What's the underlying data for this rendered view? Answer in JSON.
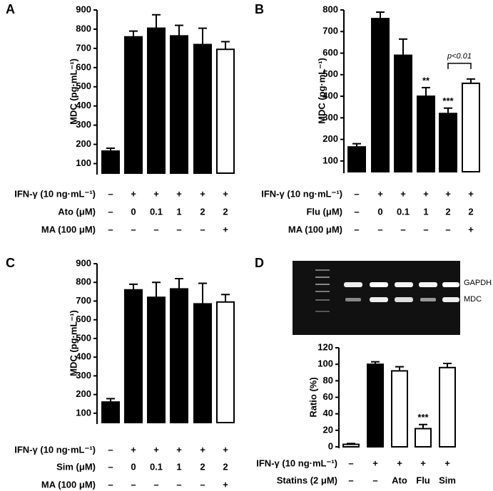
{
  "chart_data": [
    {
      "type": "bar",
      "panel_label": "A",
      "ylabel": "MDC (pg·mL⁻¹)",
      "ylim": [
        50,
        900
      ],
      "yticks": [
        100,
        200,
        300,
        400,
        500,
        600,
        700,
        800,
        900
      ],
      "values": [
        165,
        760,
        805,
        765,
        720,
        695
      ],
      "errors": [
        15,
        30,
        70,
        55,
        85,
        40
      ],
      "colors": [
        "#000000",
        "#000000",
        "#000000",
        "#000000",
        "#000000",
        "#ffffff"
      ],
      "treatments": [
        {
          "label": "IFN-γ  (10 ng·mL⁻¹)",
          "values": [
            "–",
            "+",
            "+",
            "+",
            "+",
            "+"
          ]
        },
        {
          "label": "Ato (μM)",
          "values": [
            "–",
            "0",
            "0.1",
            "1",
            "2",
            "2"
          ]
        },
        {
          "label": "MA (100 μM)",
          "values": [
            "–",
            "–",
            "–",
            "–",
            "–",
            "+"
          ]
        }
      ]
    },
    {
      "type": "bar",
      "panel_label": "B",
      "ylabel": "MDC (pg·mL⁻¹)",
      "ylim": [
        50,
        800
      ],
      "yticks": [
        100,
        200,
        300,
        400,
        500,
        600,
        700,
        800
      ],
      "values": [
        165,
        760,
        590,
        400,
        320,
        460
      ],
      "errors": [
        15,
        30,
        75,
        40,
        25,
        20
      ],
      "colors": [
        "#000000",
        "#000000",
        "#000000",
        "#000000",
        "#000000",
        "#ffffff"
      ],
      "bar_labels": [
        null,
        null,
        null,
        "**",
        "***",
        null
      ],
      "bracket_label": "p<0.01",
      "treatments": [
        {
          "label": "IFN-γ  (10 ng·mL⁻¹)",
          "values": [
            "–",
            "+",
            "+",
            "+",
            "+",
            "+"
          ]
        },
        {
          "label": "Flu (μM)",
          "values": [
            "–",
            "0",
            "0.1",
            "1",
            "2",
            "2"
          ]
        },
        {
          "label": "MA (100 μM)",
          "values": [
            "–",
            "–",
            "–",
            "–",
            "–",
            "+"
          ]
        }
      ]
    },
    {
      "type": "bar",
      "panel_label": "C",
      "ylabel": "MDC (pg·mL⁻¹)",
      "ylim": [
        50,
        900
      ],
      "yticks": [
        100,
        200,
        300,
        400,
        500,
        600,
        700,
        800,
        900
      ],
      "values": [
        160,
        760,
        720,
        765,
        685,
        695
      ],
      "errors": [
        18,
        30,
        80,
        55,
        110,
        40
      ],
      "colors": [
        "#000000",
        "#000000",
        "#000000",
        "#000000",
        "#000000",
        "#ffffff"
      ],
      "treatments": [
        {
          "label": "IFN-γ  (10 ng·mL⁻¹)",
          "values": [
            "–",
            "+",
            "+",
            "+",
            "+",
            "+"
          ]
        },
        {
          "label": "Sim (μM)",
          "values": [
            "–",
            "0",
            "0.1",
            "1",
            "2",
            "2"
          ]
        },
        {
          "label": "MA (100 μM)",
          "values": [
            "–",
            "–",
            "–",
            "–",
            "–",
            "+"
          ]
        }
      ]
    },
    {
      "type": "bar",
      "panel_label": "D",
      "ylabel": "Ratio (%)",
      "ylim": [
        0,
        120
      ],
      "yticks": [
        0,
        20,
        40,
        60,
        80,
        100,
        120
      ],
      "values": [
        3,
        100,
        92,
        22,
        96
      ],
      "errors": [
        1,
        3,
        5,
        5,
        5
      ],
      "colors": [
        "#ffffff",
        "#000000",
        "#ffffff",
        "#ffffff",
        "#ffffff"
      ],
      "bar_labels": [
        null,
        null,
        null,
        "***",
        null
      ],
      "gel_labels": [
        "GAPDH",
        "MDC"
      ],
      "treatments": [
        {
          "label": "IFN-γ  (10 ng·mL⁻¹)",
          "values": [
            "–",
            "+",
            "+",
            "+",
            "+"
          ]
        },
        {
          "label": "Statins (2 μM)",
          "values": [
            "–",
            "–",
            "Ato",
            "Flu",
            "Sim"
          ]
        }
      ]
    }
  ]
}
